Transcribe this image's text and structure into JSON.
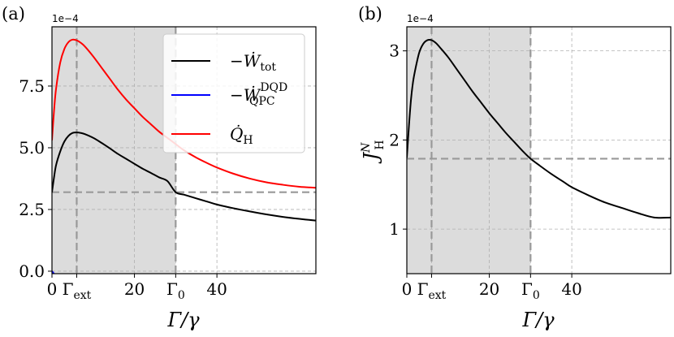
{
  "chart_data": [
    {
      "panel_label": "(a)",
      "type": "line",
      "xlabel": "Γ/γ",
      "ylabel": "",
      "xlim": [
        0,
        64
      ],
      "ylim": [
        -0.1,
        9.9
      ],
      "y_exponent_label": "1e−4",
      "xticks": [
        {
          "value": 0,
          "label": "0"
        },
        {
          "value": 6,
          "label": "Γ",
          "sub": "ext"
        },
        {
          "value": 20,
          "label": "20"
        },
        {
          "value": 30,
          "label": "Γ",
          "sub": "0"
        },
        {
          "value": 40,
          "label": "40"
        }
      ],
      "yticks": [
        {
          "value": 0,
          "label": "0.0"
        },
        {
          "value": 2.5,
          "label": "2.5"
        },
        {
          "value": 5,
          "label": "5.0"
        },
        {
          "value": 7.5,
          "label": "7.5"
        }
      ],
      "shaded_region": [
        0,
        30
      ],
      "vlines": [
        6,
        30
      ],
      "hline": 3.2,
      "grid": true,
      "legend_position": "top-right",
      "series": [
        {
          "name": "−Ẇtot",
          "color": "#000000",
          "x": [
            0,
            0.5,
            1,
            2,
            3,
            4,
            5,
            6,
            7,
            8,
            10,
            12,
            14,
            16,
            18,
            20,
            22,
            24,
            26,
            28,
            30,
            32,
            35,
            38,
            40,
            44,
            48,
            52,
            56,
            60,
            64
          ],
          "values": [
            3.2,
            3.8,
            4.3,
            4.85,
            5.25,
            5.48,
            5.6,
            5.62,
            5.6,
            5.55,
            5.4,
            5.2,
            4.98,
            4.75,
            4.55,
            4.35,
            4.15,
            3.98,
            3.8,
            3.65,
            3.2,
            3.1,
            2.95,
            2.8,
            2.7,
            2.55,
            2.42,
            2.3,
            2.2,
            2.12,
            2.05
          ]
        },
        {
          "name": "−ẆQPC DQD",
          "color": "#0000ff",
          "x": [
            0,
            1,
            2,
            3,
            4,
            6,
            8,
            10,
            14,
            18,
            22,
            26,
            30,
            36,
            42,
            48,
            54,
            60,
            64
          ],
          "values": [
            0.0,
            -0.2,
            -0.32,
            -0.4,
            -0.45,
            -0.48,
            -0.48,
            -0.47,
            -0.45,
            -0.42,
            -0.39,
            -0.36,
            -0.33,
            -0.3,
            -0.27,
            -0.25,
            -0.23,
            -0.21,
            -0.2
          ]
        },
        {
          "name": "Q̇H",
          "color": "#ff0000",
          "x": [
            0,
            0.5,
            1,
            2,
            3,
            4,
            5,
            6,
            7,
            8,
            10,
            12,
            14,
            16,
            18,
            20,
            22,
            24,
            26,
            28,
            30,
            32,
            35,
            38,
            40,
            44,
            48,
            52,
            56,
            60,
            64
          ],
          "values": [
            5.3,
            6.5,
            7.4,
            8.45,
            9.0,
            9.28,
            9.38,
            9.35,
            9.25,
            9.1,
            8.7,
            8.25,
            7.8,
            7.35,
            6.95,
            6.6,
            6.25,
            5.95,
            5.65,
            5.4,
            5.15,
            4.9,
            4.6,
            4.35,
            4.2,
            3.95,
            3.75,
            3.6,
            3.5,
            3.42,
            3.38
          ]
        }
      ]
    },
    {
      "panel_label": "(b)",
      "type": "line",
      "xlabel": "Γ/γ",
      "ylabel": "J",
      "ylabel_sup": "N",
      "ylabel_sub": "H",
      "xlim": [
        0,
        64
      ],
      "ylim": [
        0.5,
        3.27
      ],
      "y_exponent_label": "1e−4",
      "xticks": [
        {
          "value": 0,
          "label": "0"
        },
        {
          "value": 6,
          "label": "Γ",
          "sub": "ext"
        },
        {
          "value": 20,
          "label": "20"
        },
        {
          "value": 30,
          "label": "Γ",
          "sub": "0"
        },
        {
          "value": 40,
          "label": "40"
        }
      ],
      "yticks": [
        {
          "value": 1,
          "label": "1"
        },
        {
          "value": 2,
          "label": "2"
        },
        {
          "value": 3,
          "label": "3"
        }
      ],
      "shaded_region": [
        0,
        30
      ],
      "vlines": [
        6,
        30
      ],
      "hline": 1.79,
      "grid": true,
      "series": [
        {
          "name": "J",
          "color": "#000000",
          "x": [
            0,
            0.5,
            1,
            1.5,
            2,
            3,
            4,
            5,
            6,
            7,
            8,
            10,
            12,
            14,
            16,
            18,
            20,
            22,
            24,
            26,
            28,
            30,
            32,
            35,
            38,
            40,
            44,
            48,
            52,
            56,
            60,
            64
          ],
          "values": [
            1.8,
            2.15,
            2.45,
            2.65,
            2.78,
            2.98,
            3.08,
            3.12,
            3.12,
            3.09,
            3.04,
            2.93,
            2.8,
            2.67,
            2.54,
            2.42,
            2.3,
            2.19,
            2.08,
            1.98,
            1.88,
            1.79,
            1.72,
            1.62,
            1.53,
            1.47,
            1.38,
            1.3,
            1.24,
            1.18,
            1.13,
            1.13
          ]
        }
      ]
    }
  ]
}
